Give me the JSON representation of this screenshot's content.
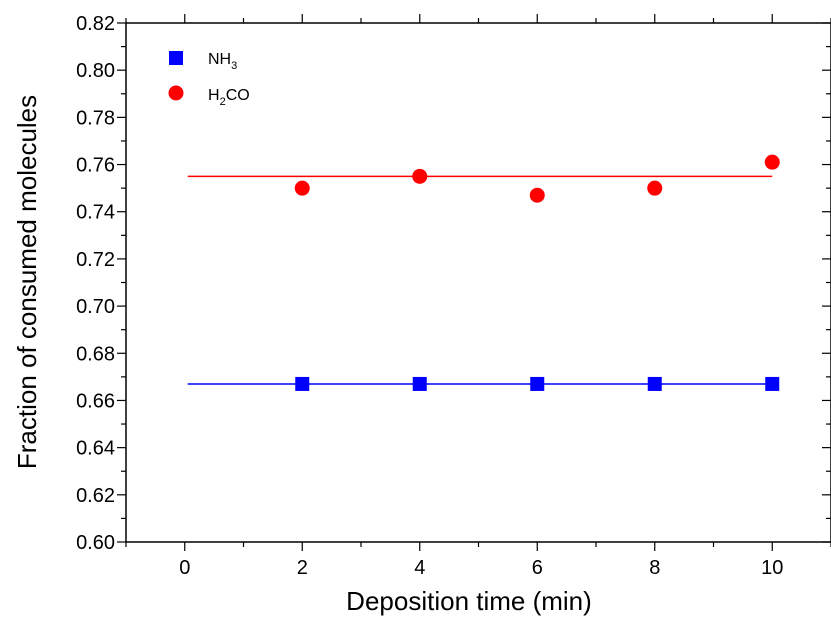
{
  "chart_data": {
    "type": "scatter",
    "title": "",
    "xlabel": "Deposition time (min)",
    "ylabel": "Fraction of consumed molecules",
    "xlim": [
      -1,
      11
    ],
    "ylim": [
      0.6,
      0.82
    ],
    "xticks": [
      0,
      2,
      4,
      6,
      8,
      10
    ],
    "xtick_labels": [
      "0",
      "2",
      "4",
      "6",
      "8",
      "10"
    ],
    "yticks": [
      0.6,
      0.62,
      0.64,
      0.66,
      0.68,
      0.7,
      0.72,
      0.74,
      0.76,
      0.78,
      0.8,
      0.82
    ],
    "ytick_labels": [
      "0.60",
      "0.62",
      "0.64",
      "0.66",
      "0.68",
      "0.70",
      "0.72",
      "0.74",
      "0.76",
      "0.78",
      "0.80",
      "0.82"
    ],
    "grid": false,
    "legend_position": "top-left",
    "series": [
      {
        "name_main": "NH",
        "name_sub": "3",
        "marker": "square",
        "color": "#0000ff",
        "x": [
          2,
          4,
          6,
          8,
          10
        ],
        "y": [
          0.667,
          0.667,
          0.667,
          0.667,
          0.667
        ],
        "fit_y": 0.667
      },
      {
        "name_main": "H",
        "name_sub": "2",
        "name_tail": "CO",
        "marker": "circle",
        "color": "#ff0000",
        "x": [
          2,
          4,
          6,
          8,
          10
        ],
        "y": [
          0.75,
          0.755,
          0.747,
          0.75,
          0.761
        ],
        "fit_y": 0.755
      }
    ]
  }
}
